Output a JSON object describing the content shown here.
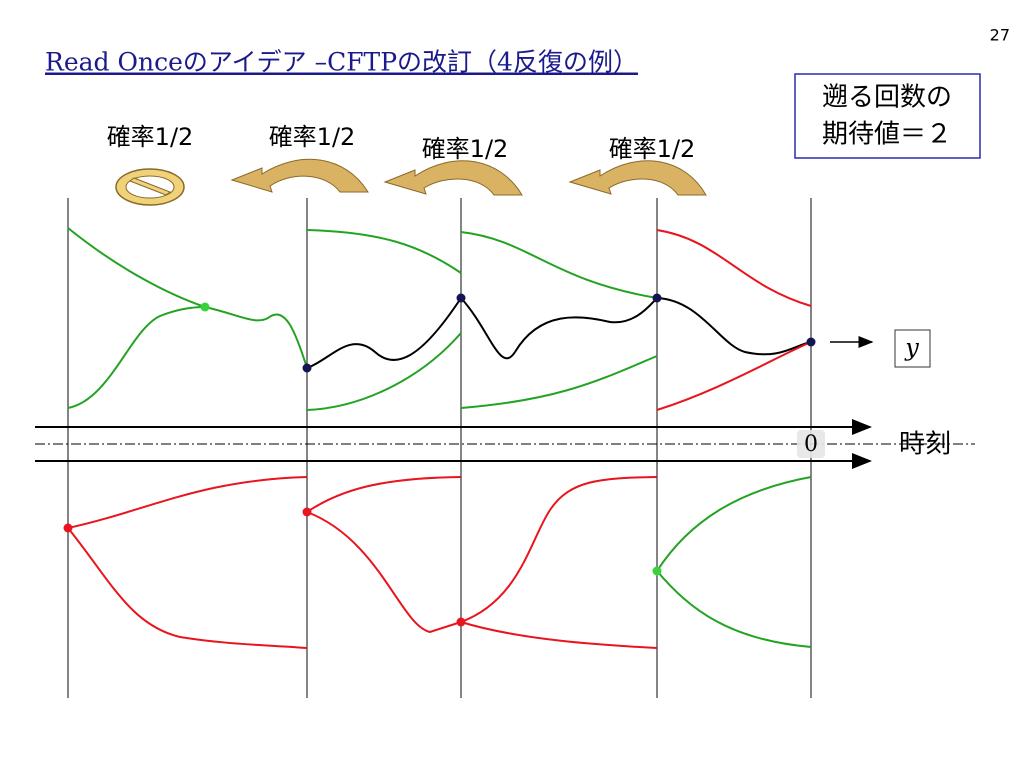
{
  "page_number": "27",
  "title": "Read Onceのアイデア –CFTPの改訂（4反復の例）",
  "probability_labels": [
    "確率1/2",
    "確率1/2",
    "確率1/2",
    "確率1/2"
  ],
  "expectation_box": {
    "lines": [
      "遡る回数の",
      "期待値＝２"
    ]
  },
  "output_label": "y",
  "time_zero_label": "0",
  "time_axis_label": "時刻"
}
